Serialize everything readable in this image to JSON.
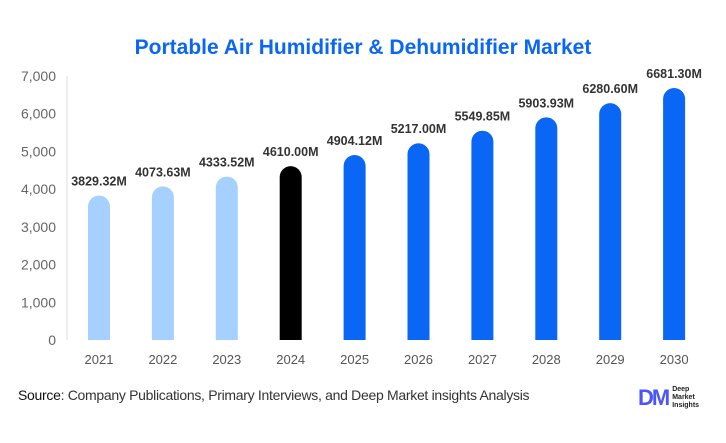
{
  "chart_data": {
    "type": "bar",
    "title": "Portable Air Humidifier & Dehumidifier Market",
    "categories": [
      "2021",
      "2022",
      "2023",
      "2024",
      "2025",
      "2026",
      "2027",
      "2028",
      "2029",
      "2030"
    ],
    "values": [
      3829.32,
      4073.63,
      4333.52,
      4610.0,
      4904.12,
      5217.0,
      5549.85,
      5903.93,
      6280.6,
      6681.3
    ],
    "data_labels": [
      "3829.32M",
      "4073.63M",
      "4333.52M",
      "4610.00M",
      "4904.12M",
      "5217.00M",
      "5549.85M",
      "5903.93M",
      "6280.60M",
      "6681.30M"
    ],
    "bar_colors": [
      "#a6d0ff",
      "#a6d0ff",
      "#a6d0ff",
      "#000000",
      "#0a66f5",
      "#0a66f5",
      "#0a66f5",
      "#0a66f5",
      "#0a66f5",
      "#0a66f5"
    ],
    "yticks": [
      0,
      1000,
      2000,
      3000,
      4000,
      5000,
      6000,
      7000
    ],
    "ytick_labels": [
      "0",
      "1,000",
      "2,000",
      "3,000",
      "4,000",
      "5,000",
      "6,000",
      "7,000"
    ],
    "ylim": [
      0,
      7000
    ],
    "xlabel": "",
    "ylabel": "",
    "grid": false
  },
  "footer": {
    "source_label": "Source",
    "source_text": ": Company Publications, Primary Interviews, and Deep Market insights Analysis",
    "logo_mark": "DM",
    "logo_text": [
      "Deep",
      "Market",
      "Insights"
    ]
  }
}
